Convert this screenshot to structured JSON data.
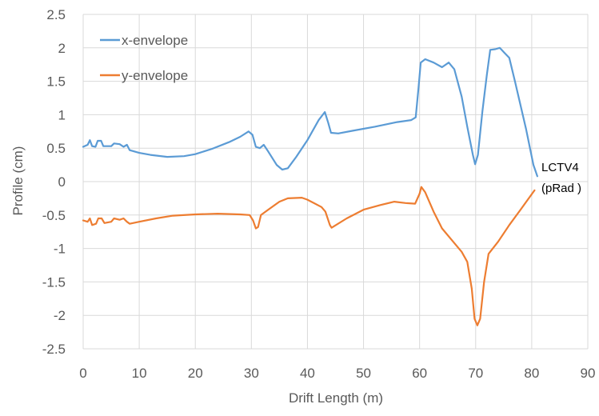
{
  "chart_data": {
    "type": "line",
    "title": "",
    "xlabel": "Drift Length (m)",
    "ylabel": "Profile (cm)",
    "xlim": [
      0,
      90
    ],
    "ylim": [
      -2.5,
      2.5
    ],
    "x_ticks": [
      0,
      10,
      20,
      30,
      40,
      50,
      60,
      70,
      80,
      90
    ],
    "y_ticks": [
      2.5,
      2,
      1.5,
      1,
      0.5,
      0,
      -0.5,
      -1,
      -1.5,
      -2,
      -2.5
    ],
    "x_tick_labels": [
      "0",
      "10",
      "20",
      "30",
      "40",
      "50",
      "60",
      "70",
      "80",
      "90"
    ],
    "y_tick_labels": [
      "2.5",
      "2",
      "1.5",
      "1",
      "0.5",
      "0",
      "-0.5",
      "-1",
      "-1.5",
      "-2",
      "-2.5"
    ],
    "grid": true,
    "legend_position": "top-left",
    "annotation": {
      "lines": [
        "LCTV4",
        "(pRad )"
      ],
      "x": 81,
      "y": 0.1
    },
    "series": [
      {
        "name": "x-envelope",
        "color": "#5B9BD5",
        "points": [
          [
            0,
            0.52
          ],
          [
            0.8,
            0.55
          ],
          [
            1.2,
            0.62
          ],
          [
            1.6,
            0.53
          ],
          [
            2.2,
            0.52
          ],
          [
            2.6,
            0.61
          ],
          [
            3.2,
            0.61
          ],
          [
            3.6,
            0.53
          ],
          [
            5.0,
            0.53
          ],
          [
            5.5,
            0.57
          ],
          [
            6.5,
            0.56
          ],
          [
            7.2,
            0.52
          ],
          [
            7.8,
            0.55
          ],
          [
            8.3,
            0.47
          ],
          [
            10,
            0.43
          ],
          [
            12,
            0.4
          ],
          [
            15,
            0.37
          ],
          [
            18,
            0.38
          ],
          [
            20,
            0.41
          ],
          [
            23,
            0.49
          ],
          [
            26,
            0.59
          ],
          [
            28,
            0.67
          ],
          [
            29.5,
            0.75
          ],
          [
            30.2,
            0.7
          ],
          [
            30.8,
            0.52
          ],
          [
            31.5,
            0.5
          ],
          [
            32.2,
            0.55
          ],
          [
            33,
            0.45
          ],
          [
            34.5,
            0.25
          ],
          [
            35.5,
            0.18
          ],
          [
            36.5,
            0.2
          ],
          [
            38,
            0.37
          ],
          [
            40,
            0.62
          ],
          [
            42,
            0.92
          ],
          [
            43.1,
            1.04
          ],
          [
            43.7,
            0.88
          ],
          [
            44.2,
            0.73
          ],
          [
            45.5,
            0.72
          ],
          [
            48,
            0.76
          ],
          [
            52,
            0.82
          ],
          [
            56,
            0.89
          ],
          [
            58.5,
            0.92
          ],
          [
            59.3,
            0.96
          ],
          [
            59.8,
            1.4
          ],
          [
            60.2,
            1.78
          ],
          [
            61,
            1.83
          ],
          [
            62.5,
            1.78
          ],
          [
            64,
            1.71
          ],
          [
            65.2,
            1.78
          ],
          [
            66.2,
            1.68
          ],
          [
            67.5,
            1.27
          ],
          [
            68.5,
            0.82
          ],
          [
            69.5,
            0.4
          ],
          [
            69.9,
            0.26
          ],
          [
            70.4,
            0.4
          ],
          [
            71.2,
            1.05
          ],
          [
            72,
            1.6
          ],
          [
            72.6,
            1.97
          ],
          [
            73.5,
            1.98
          ],
          [
            74.3,
            2.0
          ],
          [
            75.2,
            1.92
          ],
          [
            76,
            1.85
          ],
          [
            77,
            1.5
          ],
          [
            79,
            0.78
          ],
          [
            80.3,
            0.25
          ],
          [
            81,
            0.08
          ]
        ]
      },
      {
        "name": "y-envelope",
        "color": "#ED7D31",
        "points": [
          [
            0,
            -0.58
          ],
          [
            0.8,
            -0.6
          ],
          [
            1.2,
            -0.55
          ],
          [
            1.6,
            -0.65
          ],
          [
            2.3,
            -0.63
          ],
          [
            2.7,
            -0.55
          ],
          [
            3.3,
            -0.55
          ],
          [
            3.8,
            -0.62
          ],
          [
            5,
            -0.6
          ],
          [
            5.5,
            -0.55
          ],
          [
            6.5,
            -0.57
          ],
          [
            7.2,
            -0.55
          ],
          [
            7.8,
            -0.6
          ],
          [
            8.3,
            -0.63
          ],
          [
            10,
            -0.6
          ],
          [
            13,
            -0.55
          ],
          [
            16,
            -0.51
          ],
          [
            20,
            -0.49
          ],
          [
            24,
            -0.48
          ],
          [
            28,
            -0.49
          ],
          [
            29.7,
            -0.5
          ],
          [
            30.3,
            -0.58
          ],
          [
            30.8,
            -0.7
          ],
          [
            31.2,
            -0.68
          ],
          [
            31.7,
            -0.5
          ],
          [
            33,
            -0.42
          ],
          [
            35,
            -0.3
          ],
          [
            36.5,
            -0.25
          ],
          [
            39,
            -0.24
          ],
          [
            40,
            -0.27
          ],
          [
            42.5,
            -0.38
          ],
          [
            43.2,
            -0.45
          ],
          [
            44,
            -0.65
          ],
          [
            44.3,
            -0.69
          ],
          [
            47,
            -0.55
          ],
          [
            50,
            -0.42
          ],
          [
            53,
            -0.35
          ],
          [
            55.5,
            -0.3
          ],
          [
            57.5,
            -0.32
          ],
          [
            59.2,
            -0.33
          ],
          [
            60,
            -0.18
          ],
          [
            60.3,
            -0.08
          ],
          [
            61,
            -0.16
          ],
          [
            62.5,
            -0.45
          ],
          [
            64,
            -0.7
          ],
          [
            66,
            -0.9
          ],
          [
            67.5,
            -1.05
          ],
          [
            68.5,
            -1.2
          ],
          [
            69.3,
            -1.6
          ],
          [
            69.8,
            -2.05
          ],
          [
            70.3,
            -2.15
          ],
          [
            70.8,
            -2.05
          ],
          [
            71.5,
            -1.5
          ],
          [
            72.3,
            -1.08
          ],
          [
            74,
            -0.9
          ],
          [
            76,
            -0.65
          ],
          [
            78,
            -0.42
          ],
          [
            80.5,
            -0.13
          ]
        ]
      }
    ]
  }
}
